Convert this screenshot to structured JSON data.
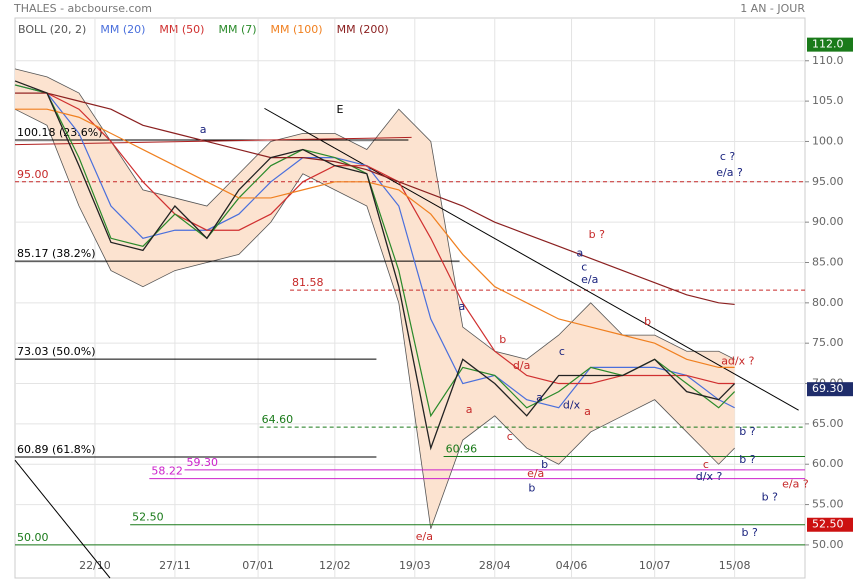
{
  "header": {
    "title": "THALES - abcbourse.com",
    "period": "1 AN - JOUR"
  },
  "chart_data": {
    "type": "line",
    "x": [
      0,
      10,
      20,
      30,
      40,
      50,
      60,
      70,
      80,
      90,
      100,
      110,
      120,
      130,
      140,
      150,
      160,
      170,
      180,
      190,
      200,
      210,
      220,
      225
    ],
    "xlim": [
      0,
      247
    ],
    "xticks": [
      {
        "value": 25,
        "label": "22/10"
      },
      {
        "value": 50,
        "label": "27/11"
      },
      {
        "value": 76,
        "label": "07/01"
      },
      {
        "value": 100,
        "label": "12/02"
      },
      {
        "value": 125,
        "label": "19/03"
      },
      {
        "value": 150,
        "label": "28/04"
      },
      {
        "value": 174,
        "label": "04/06"
      },
      {
        "value": 200,
        "label": "10/07"
      },
      {
        "value": 225,
        "label": "15/08"
      }
    ],
    "ylim": [
      45.9,
      115.3
    ],
    "yticks": [
      {
        "value": 50,
        "label": "50.00"
      },
      {
        "value": 55,
        "label": "55.00"
      },
      {
        "value": 60,
        "label": "60.00"
      },
      {
        "value": 65,
        "label": "65.00"
      },
      {
        "value": 70,
        "label": "70.00"
      },
      {
        "value": 75,
        "label": "75.00"
      },
      {
        "value": 80,
        "label": "80.00"
      },
      {
        "value": 85,
        "label": "85.00"
      },
      {
        "value": 90,
        "label": "90.00"
      },
      {
        "value": 95,
        "label": "95.00"
      },
      {
        "value": 100,
        "label": "100.0"
      },
      {
        "value": 105,
        "label": "105.0"
      },
      {
        "value": 110,
        "label": "110.0"
      }
    ],
    "grid": true,
    "price": {
      "color": "#222222",
      "values": [
        107.5,
        106,
        97,
        87.5,
        86.5,
        92,
        88,
        94,
        98,
        99,
        97,
        96,
        82,
        62,
        73,
        70,
        66,
        71,
        71,
        71,
        73,
        69,
        68,
        70
      ]
    },
    "band": {
      "name": "BOLL (20, 2)",
      "color": "#555555",
      "fill": "#fce3d0",
      "upper": [
        109,
        108,
        106,
        100,
        94,
        93,
        92,
        96,
        100,
        101,
        101,
        99,
        104,
        100,
        77,
        74,
        73,
        76,
        80,
        76,
        76,
        74,
        74,
        73
      ],
      "lower": [
        104,
        102,
        92,
        84,
        82,
        84,
        85,
        86,
        90,
        96,
        94,
        92,
        80,
        52,
        63,
        66,
        62,
        60,
        64,
        66,
        68,
        64,
        60,
        62
      ]
    },
    "series": [
      {
        "name": "MM (20)",
        "color": "#4a6fdc",
        "values": [
          107,
          106,
          101,
          92,
          88,
          89,
          89,
          91,
          95,
          98,
          98,
          97,
          92,
          78,
          70,
          71,
          68,
          67,
          72,
          72,
          72,
          71,
          68,
          67
        ]
      },
      {
        "name": "MM (50)",
        "color": "#d03030",
        "values": [
          106,
          106,
          104,
          100,
          95,
          91,
          89,
          89,
          91,
          95,
          97,
          97,
          95,
          88,
          80,
          74,
          71,
          70,
          70,
          71,
          71,
          71,
          70,
          70
        ]
      },
      {
        "name": "MM (7)",
        "color": "#2a8a2a",
        "values": [
          107,
          106,
          98,
          88,
          87,
          91,
          88,
          93,
          97,
          99,
          98,
          96,
          84,
          66,
          72,
          71,
          67,
          69,
          72,
          71,
          73,
          70,
          67,
          69
        ]
      },
      {
        "name": "MM (100)",
        "color": "#f08020",
        "values": [
          104,
          104,
          103,
          101,
          99,
          97,
          95,
          93,
          93,
          94,
          95,
          95,
          94,
          91,
          86,
          82,
          80,
          78,
          77,
          76,
          75,
          73,
          72,
          72
        ]
      },
      {
        "name": "MM (200)",
        "color": "#8b2020",
        "values": [
          106,
          106,
          105,
          104,
          102,
          101,
          100,
          99,
          98,
          98,
          97.5,
          96.5,
          95,
          93.5,
          92,
          90,
          88.5,
          87,
          85.5,
          84,
          82.5,
          81,
          80,
          79.8
        ]
      }
    ],
    "levels": [
      {
        "value": 100.18,
        "label": "100.18 (23.6%)",
        "color": "#000000",
        "dashed": false,
        "from": 0,
        "to": 123
      },
      {
        "value": 95.0,
        "label": "95.00",
        "color": "#c62828",
        "dashed": true,
        "from": 0,
        "to": 247
      },
      {
        "value": 85.17,
        "label": "85.17 (38.2%)",
        "color": "#000000",
        "dashed": false,
        "from": 0,
        "to": 139
      },
      {
        "value": 81.58,
        "label": "81.58",
        "color": "#c62828",
        "dashed": true,
        "from": 86,
        "to": 247
      },
      {
        "value": 73.03,
        "label": "73.03 (50.0%)",
        "color": "#000000",
        "dashed": false,
        "from": 0,
        "to": 113
      },
      {
        "value": 64.6,
        "label": "64.60",
        "color": "#1a7a1a",
        "dashed": true,
        "from": 76.5,
        "to": 247
      },
      {
        "value": 60.89,
        "label": "60.89 (61.8%)",
        "color": "#000000",
        "dashed": false,
        "from": 0,
        "to": 113
      },
      {
        "value": 60.96,
        "label": "60.96",
        "color": "#1a7a1a",
        "dashed": false,
        "from": 134,
        "to": 247
      },
      {
        "value": 59.3,
        "label": "59.30",
        "color": "#cc22cc",
        "dashed": false,
        "from": 53,
        "to": 247
      },
      {
        "value": 58.22,
        "label": "58.22",
        "color": "#cc22cc",
        "dashed": false,
        "from": 42,
        "to": 247
      },
      {
        "value": 52.5,
        "label": "52.50",
        "color": "#1a7a1a",
        "dashed": false,
        "from": 36,
        "to": 247
      },
      {
        "value": 50.0,
        "label": "50.00",
        "color": "#1a7a1a",
        "dashed": false,
        "from": 0,
        "to": 247
      }
    ],
    "trendlines": [
      {
        "from": [
          78,
          104.1
        ],
        "to": [
          245,
          66.7
        ],
        "color": "#000000"
      },
      {
        "from": [
          0,
          99.6
        ],
        "to": [
          124,
          100.5
        ],
        "color": "#b02020"
      },
      {
        "from": [
          0,
          60.5
        ],
        "to": [
          29.7,
          45.9
        ],
        "color": "#000000"
      }
    ],
    "annotations": [
      {
        "text": "E",
        "x": 101.6,
        "y": 103.9,
        "color": "#000000",
        "size": 18
      },
      {
        "text": "a",
        "x": 58.8,
        "y": 101.4,
        "color": "#1a237e",
        "size": 10
      },
      {
        "text": "b ?",
        "x": 181.9,
        "y": 88.4,
        "color": "#c62828",
        "size": 18
      },
      {
        "text": "a",
        "x": 176.6,
        "y": 86.1,
        "color": "#1a237e",
        "size": 14
      },
      {
        "text": "c",
        "x": 178,
        "y": 84.4,
        "color": "#1a237e",
        "size": 11
      },
      {
        "text": "e/a",
        "x": 179.7,
        "y": 82.8,
        "color": "#1a237e",
        "size": 9
      },
      {
        "text": "a",
        "x": 139.7,
        "y": 79.5,
        "color": "#1a237e",
        "size": 13
      },
      {
        "text": "b",
        "x": 152.5,
        "y": 75.4,
        "color": "#c62828",
        "size": 11
      },
      {
        "text": "c",
        "x": 171,
        "y": 73.9,
        "color": "#1a237e",
        "size": 11
      },
      {
        "text": "b",
        "x": 197.8,
        "y": 77.6,
        "color": "#c62828",
        "size": 11
      },
      {
        "text": "ad/x ?",
        "x": 226,
        "y": 72.7,
        "color": "#c62828",
        "size": 11
      },
      {
        "text": "d/a",
        "x": 158.4,
        "y": 72.2,
        "color": "#c62828",
        "size": 11
      },
      {
        "text": "a",
        "x": 142,
        "y": 66.7,
        "color": "#c62828",
        "size": 11
      },
      {
        "text": "a",
        "x": 164,
        "y": 68.2,
        "color": "#1a237e",
        "size": 10
      },
      {
        "text": "d/x",
        "x": 174,
        "y": 67.3,
        "color": "#1a237e",
        "size": 10
      },
      {
        "text": "a",
        "x": 179,
        "y": 66.5,
        "color": "#c62828",
        "size": 11
      },
      {
        "text": "c",
        "x": 154.7,
        "y": 63.4,
        "color": "#c62828",
        "size": 11
      },
      {
        "text": "b",
        "x": 165.6,
        "y": 59.9,
        "color": "#1a237e",
        "size": 10
      },
      {
        "text": "e/a",
        "x": 162.8,
        "y": 58.8,
        "color": "#c62828",
        "size": 11
      },
      {
        "text": "b",
        "x": 161.6,
        "y": 57,
        "color": "#1a237e",
        "size": 13
      },
      {
        "text": "c",
        "x": 216,
        "y": 59.9,
        "color": "#c62828",
        "size": 11
      },
      {
        "text": "d/x ?",
        "x": 217,
        "y": 58.4,
        "color": "#1a237e",
        "size": 13
      },
      {
        "text": "b ?",
        "x": 229,
        "y": 64,
        "color": "#1a237e",
        "size": 11
      },
      {
        "text": "b ?",
        "x": 229,
        "y": 60.5,
        "color": "#1a237e",
        "size": 11
      },
      {
        "text": "e/a ?",
        "x": 244,
        "y": 57.5,
        "color": "#c62828",
        "size": 10
      },
      {
        "text": "b ?",
        "x": 236,
        "y": 55.9,
        "color": "#1a237e",
        "size": 16
      },
      {
        "text": "b ?",
        "x": 229.7,
        "y": 51.5,
        "color": "#1a237e",
        "size": 15
      },
      {
        "text": "c ?",
        "x": 222.8,
        "y": 98.1,
        "color": "#1a237e",
        "size": 14
      },
      {
        "text": "e/a ?",
        "x": 223.4,
        "y": 96.1,
        "color": "#1a237e",
        "size": 13
      },
      {
        "text": "e/a",
        "x": 128,
        "y": 51,
        "color": "#c62828",
        "size": 18
      }
    ],
    "price_tags": [
      {
        "value": 112.0,
        "label": "112.0",
        "color": "#1a7a1a"
      },
      {
        "value": 69.3,
        "label": "69.30",
        "color": "#1f2d6b"
      },
      {
        "value": 52.5,
        "label": "52.50",
        "color": "#cc1111"
      }
    ]
  }
}
